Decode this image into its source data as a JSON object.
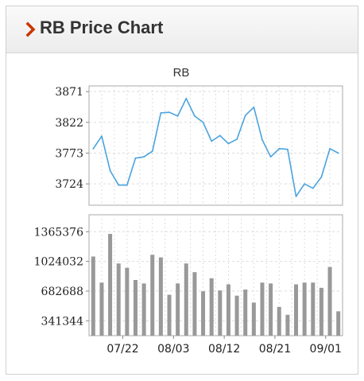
{
  "page": {
    "title": "RB Price Chart",
    "header_icon": "chevron-right-icon",
    "accent_color": "#cc3300"
  },
  "chart_data": [
    {
      "type": "line",
      "title": "RB",
      "series_color": "#4aa3df",
      "y_ticks": [
        3871,
        3822,
        3773,
        3724
      ],
      "ylim": [
        3690,
        3880
      ],
      "grid": true,
      "values": [
        3780,
        3800,
        3745,
        3722,
        3722,
        3765,
        3767,
        3776,
        3837,
        3838,
        3832,
        3860,
        3832,
        3822,
        3792,
        3801,
        3788,
        3795,
        3833,
        3846,
        3794,
        3767,
        3780,
        3779,
        3704,
        3724,
        3717,
        3735,
        3780,
        3773
      ]
    },
    {
      "type": "bar",
      "series_color": "#999999",
      "y_ticks": [
        "1365376",
        "1024032",
        "682688",
        "341344"
      ],
      "ylim": [
        170000,
        1560000
      ],
      "grid": true,
      "x_ticks": [
        "07/22",
        "08/03",
        "08/12",
        "08/21",
        "09/01"
      ],
      "x_tick_positions": [
        3.5,
        9.5,
        15.5,
        21.5,
        27.5
      ],
      "values": [
        1080000,
        780000,
        1340000,
        1000000,
        950000,
        810000,
        770000,
        1100000,
        1070000,
        640000,
        770000,
        1000000,
        900000,
        680000,
        830000,
        690000,
        760000,
        630000,
        700000,
        550000,
        780000,
        770000,
        500000,
        410000,
        760000,
        780000,
        780000,
        720000,
        960000,
        450000
      ]
    }
  ]
}
